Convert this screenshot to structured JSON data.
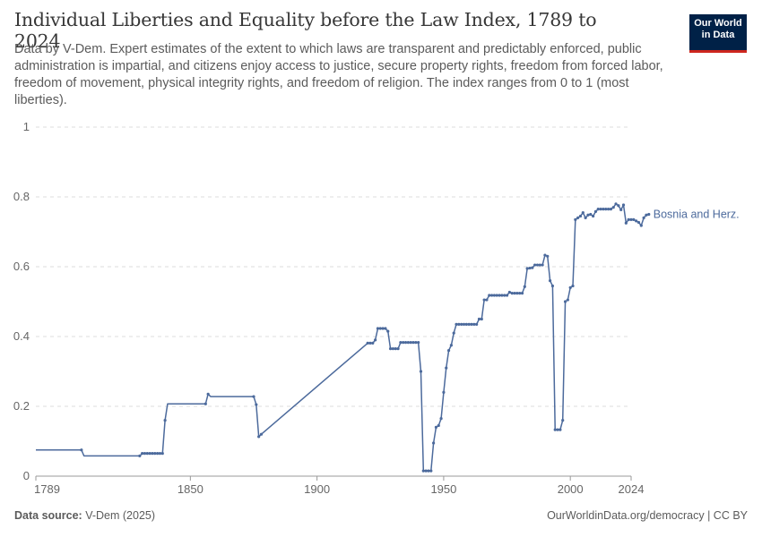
{
  "header": {
    "title": "Individual Liberties and Equality before the Law Index, 1789 to 2024",
    "subtitle": "Data by V-Dem. Expert estimates of the extent to which laws are transparent and predictably enforced, public administration is impartial, and citizens enjoy access to justice, secure property rights, freedom from forced labor, freedom of movement, physical integrity rights, and freedom of religion. The index ranges from 0 to 1 (most liberties).",
    "logo_line1": "Our World",
    "logo_line2": "in Data"
  },
  "footer": {
    "source_label": "Data source:",
    "source_value": "V-Dem (2025)",
    "right_text": "OurWorldinData.org/democracy | CC BY"
  },
  "colors": {
    "series": "#4c6a9c",
    "grid": "#dddddd",
    "axis": "#666666",
    "text": "#5b5b5b"
  },
  "chart_data": {
    "type": "line",
    "xlim": [
      1789,
      2024
    ],
    "ylim": [
      0,
      1
    ],
    "x_ticks": [
      "1789",
      "1850",
      "1900",
      "1950",
      "2000",
      "2024"
    ],
    "y_ticks": [
      "0",
      "0.2",
      "0.4",
      "0.6",
      "0.8",
      "1"
    ],
    "grid": "horizontal dashed",
    "series": [
      {
        "name": "Bosnia and Herz.",
        "segments": [
          [
            [
              1789,
              0.075
            ],
            [
              1807,
              0.075
            ],
            [
              1808,
              0.058
            ],
            [
              1830,
              0.058
            ],
            [
              1831,
              0.065
            ],
            [
              1839,
              0.065
            ],
            [
              1840,
              0.16
            ],
            [
              1841,
              0.207
            ],
            [
              1856,
              0.207
            ],
            [
              1857,
              0.235
            ],
            [
              1858,
              0.228
            ],
            [
              1875,
              0.228
            ],
            [
              1876,
              0.205
            ],
            [
              1877,
              0.113
            ],
            [
              1878,
              0.12
            ]
          ],
          [
            [
              1878,
              0.12
            ],
            [
              1920,
              0.381
            ],
            [
              1922,
              0.381
            ],
            [
              1923,
              0.39
            ],
            [
              1924,
              0.423
            ],
            [
              1927,
              0.423
            ],
            [
              1928,
              0.415
            ],
            [
              1929,
              0.365
            ],
            [
              1932,
              0.365
            ],
            [
              1933,
              0.383
            ],
            [
              1940,
              0.383
            ],
            [
              1941,
              0.3
            ],
            [
              1942,
              0.015
            ],
            [
              1945,
              0.015
            ],
            [
              1946,
              0.095
            ],
            [
              1947,
              0.14
            ],
            [
              1948,
              0.145
            ],
            [
              1949,
              0.165
            ],
            [
              1950,
              0.24
            ],
            [
              1951,
              0.31
            ],
            [
              1952,
              0.36
            ],
            [
              1953,
              0.375
            ],
            [
              1954,
              0.41
            ],
            [
              1955,
              0.435
            ],
            [
              1963,
              0.435
            ],
            [
              1964,
              0.45
            ],
            [
              1965,
              0.45
            ],
            [
              1966,
              0.505
            ],
            [
              1967,
              0.505
            ],
            [
              1968,
              0.518
            ],
            [
              1975,
              0.518
            ],
            [
              1976,
              0.527
            ],
            [
              1977,
              0.524
            ],
            [
              1981,
              0.524
            ],
            [
              1982,
              0.543
            ],
            [
              1983,
              0.595
            ],
            [
              1985,
              0.597
            ],
            [
              1986,
              0.605
            ],
            [
              1989,
              0.605
            ],
            [
              1990,
              0.633
            ],
            [
              1991,
              0.63
            ],
            [
              1992,
              0.56
            ],
            [
              1993,
              0.545
            ],
            [
              1994,
              0.133
            ],
            [
              1996,
              0.133
            ],
            [
              1997,
              0.16
            ],
            [
              1998,
              0.5
            ],
            [
              1999,
              0.505
            ],
            [
              2000,
              0.54
            ],
            [
              2001,
              0.545
            ],
            [
              2002,
              0.735
            ],
            [
              2003,
              0.74
            ],
            [
              2004,
              0.745
            ],
            [
              2005,
              0.755
            ],
            [
              2006,
              0.74
            ],
            [
              2007,
              0.748
            ],
            [
              2008,
              0.75
            ],
            [
              2009,
              0.745
            ],
            [
              2010,
              0.758
            ],
            [
              2011,
              0.765
            ],
            [
              2016,
              0.765
            ],
            [
              2017,
              0.77
            ],
            [
              2018,
              0.78
            ],
            [
              2019,
              0.775
            ],
            [
              2020,
              0.763
            ],
            [
              2021,
              0.777
            ],
            [
              2022,
              0.725
            ],
            [
              2023,
              0.735
            ],
            [
              2025,
              0.735
            ],
            [
              2027,
              0.727
            ],
            [
              2028,
              0.718
            ],
            [
              2029,
              0.74
            ],
            [
              2030,
              0.748
            ],
            [
              2031,
              0.75
            ]
          ]
        ]
      }
    ]
  }
}
